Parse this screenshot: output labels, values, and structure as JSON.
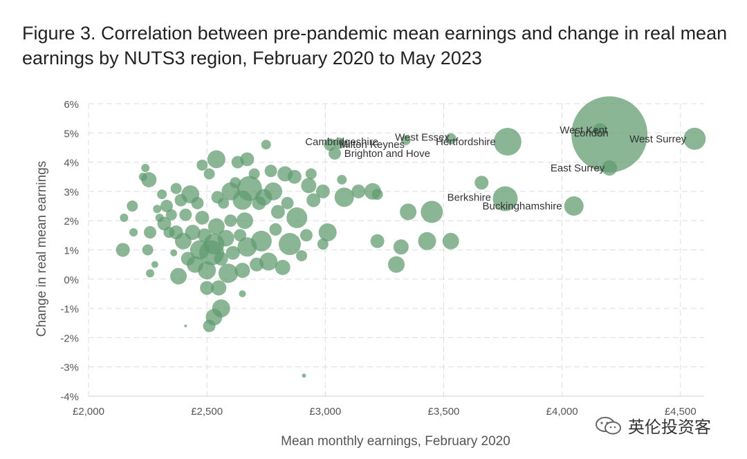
{
  "title": "Figure 3. Correlation between pre-pandemic mean earnings and change in real mean earnings by NUTS3 region, February 2020 to May 2023",
  "watermark": "英伦投资客",
  "colors": {
    "bubble": "#5e9a6e",
    "grid": "#dcdcdc",
    "axis_text": "#555555"
  },
  "chart_data": {
    "type": "scatter",
    "xlabel": "Mean monthly earnings, February 2020",
    "ylabel": "Change in real mean earnings",
    "xlim": [
      2000,
      4600
    ],
    "ylim": [
      -4,
      6
    ],
    "x_ticks": [
      2000,
      2500,
      3000,
      3500,
      4000,
      4500
    ],
    "x_tick_labels": [
      "£2,000",
      "£2,500",
      "£3,000",
      "£3,500",
      "£4,000",
      "£4,500"
    ],
    "y_ticks": [
      -4,
      -3,
      -2,
      -1,
      0,
      1,
      2,
      3,
      4,
      5,
      6
    ],
    "y_tick_labels": [
      "-4%",
      "-3%",
      "-2%",
      "-1%",
      "0%",
      "1%",
      "2%",
      "3%",
      "4%",
      "5%",
      "6%"
    ],
    "grid": true,
    "points": [
      {
        "x": 4200,
        "y": 4.95,
        "r": 55,
        "label": "London"
      },
      {
        "x": 4560,
        "y": 4.8,
        "r": 16,
        "label": "West Surrey"
      },
      {
        "x": 4160,
        "y": 5.1,
        "r": 10,
        "label": "West Kent"
      },
      {
        "x": 4200,
        "y": 3.8,
        "r": 11,
        "label": "East Surrey"
      },
      {
        "x": 3770,
        "y": 4.7,
        "r": 20,
        "label": "Hertfordshire"
      },
      {
        "x": 3760,
        "y": 2.75,
        "r": 18,
        "label": "Berkshire"
      },
      {
        "x": 4050,
        "y": 2.5,
        "r": 14,
        "label": "Buckinghamshire"
      },
      {
        "x": 3340,
        "y": 4.75,
        "r": 7,
        "label": "West Essex"
      },
      {
        "x": 3530,
        "y": 4.8,
        "r": 8,
        "label": ""
      },
      {
        "x": 3020,
        "y": 4.6,
        "r": 9,
        "label": "Cambridgeshire"
      },
      {
        "x": 3060,
        "y": 4.65,
        "r": 8,
        "label": "Milton Keynes"
      },
      {
        "x": 3040,
        "y": 4.3,
        "r": 9,
        "label": "Brighton and Hove"
      },
      {
        "x": 3660,
        "y": 3.3,
        "r": 10,
        "label": ""
      },
      {
        "x": 3450,
        "y": 2.3,
        "r": 16,
        "label": ""
      },
      {
        "x": 3350,
        "y": 2.3,
        "r": 12,
        "label": ""
      },
      {
        "x": 3200,
        "y": 3.0,
        "r": 12,
        "label": ""
      },
      {
        "x": 3140,
        "y": 3.0,
        "r": 10,
        "label": ""
      },
      {
        "x": 3220,
        "y": 2.9,
        "r": 8,
        "label": ""
      },
      {
        "x": 3430,
        "y": 1.3,
        "r": 13,
        "label": ""
      },
      {
        "x": 3530,
        "y": 1.3,
        "r": 12,
        "label": ""
      },
      {
        "x": 3320,
        "y": 1.1,
        "r": 11,
        "label": ""
      },
      {
        "x": 3220,
        "y": 1.3,
        "r": 10,
        "label": ""
      },
      {
        "x": 3300,
        "y": 0.5,
        "r": 12,
        "label": ""
      },
      {
        "x": 3080,
        "y": 2.8,
        "r": 14,
        "label": ""
      },
      {
        "x": 3070,
        "y": 3.4,
        "r": 7,
        "label": ""
      },
      {
        "x": 3010,
        "y": 1.6,
        "r": 13,
        "label": ""
      },
      {
        "x": 2990,
        "y": 1.2,
        "r": 8,
        "label": ""
      },
      {
        "x": 2990,
        "y": 3.0,
        "r": 10,
        "label": ""
      },
      {
        "x": 2940,
        "y": 3.6,
        "r": 8,
        "label": ""
      },
      {
        "x": 2950,
        "y": 2.7,
        "r": 10,
        "label": ""
      },
      {
        "x": 2930,
        "y": 3.2,
        "r": 11,
        "label": ""
      },
      {
        "x": 2920,
        "y": 1.5,
        "r": 9,
        "label": ""
      },
      {
        "x": 2900,
        "y": 0.8,
        "r": 8,
        "label": ""
      },
      {
        "x": 2880,
        "y": 2.1,
        "r": 15,
        "label": ""
      },
      {
        "x": 2870,
        "y": 3.5,
        "r": 10,
        "label": ""
      },
      {
        "x": 2850,
        "y": 1.2,
        "r": 16,
        "label": ""
      },
      {
        "x": 2830,
        "y": 3.6,
        "r": 11,
        "label": ""
      },
      {
        "x": 2840,
        "y": 2.6,
        "r": 9,
        "label": ""
      },
      {
        "x": 2820,
        "y": 0.4,
        "r": 11,
        "label": ""
      },
      {
        "x": 2800,
        "y": 2.3,
        "r": 10,
        "label": ""
      },
      {
        "x": 2790,
        "y": 1.7,
        "r": 9,
        "label": ""
      },
      {
        "x": 2780,
        "y": 3.0,
        "r": 13,
        "label": ""
      },
      {
        "x": 2770,
        "y": 3.7,
        "r": 9,
        "label": ""
      },
      {
        "x": 2760,
        "y": 0.6,
        "r": 13,
        "label": ""
      },
      {
        "x": 2750,
        "y": 4.6,
        "r": 7,
        "label": ""
      },
      {
        "x": 2740,
        "y": 2.8,
        "r": 12,
        "label": ""
      },
      {
        "x": 2730,
        "y": 1.3,
        "r": 15,
        "label": ""
      },
      {
        "x": 2720,
        "y": 2.6,
        "r": 10,
        "label": ""
      },
      {
        "x": 2710,
        "y": 0.5,
        "r": 10,
        "label": ""
      },
      {
        "x": 2700,
        "y": 3.6,
        "r": 8,
        "label": ""
      },
      {
        "x": 2680,
        "y": 3.1,
        "r": 18,
        "label": ""
      },
      {
        "x": 2670,
        "y": 4.1,
        "r": 10,
        "label": ""
      },
      {
        "x": 2670,
        "y": 1.1,
        "r": 14,
        "label": ""
      },
      {
        "x": 2660,
        "y": 2.0,
        "r": 12,
        "label": ""
      },
      {
        "x": 2650,
        "y": 0.3,
        "r": 11,
        "label": ""
      },
      {
        "x": 2650,
        "y": 2.7,
        "r": 14,
        "label": ""
      },
      {
        "x": 2640,
        "y": 1.5,
        "r": 9,
        "label": ""
      },
      {
        "x": 2630,
        "y": 4.0,
        "r": 9,
        "label": ""
      },
      {
        "x": 2620,
        "y": 3.3,
        "r": 8,
        "label": ""
      },
      {
        "x": 2610,
        "y": 0.9,
        "r": 10,
        "label": ""
      },
      {
        "x": 2600,
        "y": 3.0,
        "r": 13,
        "label": ""
      },
      {
        "x": 2600,
        "y": 2.0,
        "r": 9,
        "label": ""
      },
      {
        "x": 2590,
        "y": 0.2,
        "r": 14,
        "label": ""
      },
      {
        "x": 2580,
        "y": 1.4,
        "r": 12,
        "label": ""
      },
      {
        "x": 2570,
        "y": 2.6,
        "r": 8,
        "label": ""
      },
      {
        "x": 2560,
        "y": -1.0,
        "r": 13,
        "label": ""
      },
      {
        "x": 2560,
        "y": 0.7,
        "r": 10,
        "label": ""
      },
      {
        "x": 2550,
        "y": -0.3,
        "r": 11,
        "label": ""
      },
      {
        "x": 2545,
        "y": 2.8,
        "r": 9,
        "label": ""
      },
      {
        "x": 2540,
        "y": 4.1,
        "r": 13,
        "label": ""
      },
      {
        "x": 2540,
        "y": 1.8,
        "r": 12,
        "label": ""
      },
      {
        "x": 2530,
        "y": 1.2,
        "r": 15,
        "label": ""
      },
      {
        "x": 2530,
        "y": -1.3,
        "r": 12,
        "label": ""
      },
      {
        "x": 2520,
        "y": 0.9,
        "r": 18,
        "label": ""
      },
      {
        "x": 2510,
        "y": 3.6,
        "r": 8,
        "label": ""
      },
      {
        "x": 2510,
        "y": -1.6,
        "r": 9,
        "label": ""
      },
      {
        "x": 2500,
        "y": 0.3,
        "r": 13,
        "label": ""
      },
      {
        "x": 2500,
        "y": -0.3,
        "r": 10,
        "label": ""
      },
      {
        "x": 2490,
        "y": 1.5,
        "r": 10,
        "label": ""
      },
      {
        "x": 2480,
        "y": 2.1,
        "r": 10,
        "label": ""
      },
      {
        "x": 2480,
        "y": 3.9,
        "r": 8,
        "label": ""
      },
      {
        "x": 2470,
        "y": 1.0,
        "r": 14,
        "label": ""
      },
      {
        "x": 2460,
        "y": 2.6,
        "r": 9,
        "label": ""
      },
      {
        "x": 2450,
        "y": 0.5,
        "r": 12,
        "label": ""
      },
      {
        "x": 2440,
        "y": 1.6,
        "r": 11,
        "label": ""
      },
      {
        "x": 2430,
        "y": 2.9,
        "r": 13,
        "label": ""
      },
      {
        "x": 2420,
        "y": 0.7,
        "r": 10,
        "label": ""
      },
      {
        "x": 2410,
        "y": 2.2,
        "r": 9,
        "label": ""
      },
      {
        "x": 2400,
        "y": 1.3,
        "r": 12,
        "label": ""
      },
      {
        "x": 2390,
        "y": 2.7,
        "r": 9,
        "label": ""
      },
      {
        "x": 2380,
        "y": 0.1,
        "r": 12,
        "label": ""
      },
      {
        "x": 2370,
        "y": 1.6,
        "r": 10,
        "label": ""
      },
      {
        "x": 2370,
        "y": 3.1,
        "r": 8,
        "label": ""
      },
      {
        "x": 2360,
        "y": 0.9,
        "r": 5,
        "label": ""
      },
      {
        "x": 2350,
        "y": 2.2,
        "r": 8,
        "label": ""
      },
      {
        "x": 2340,
        "y": 1.6,
        "r": 8,
        "label": ""
      },
      {
        "x": 2330,
        "y": 2.5,
        "r": 9,
        "label": ""
      },
      {
        "x": 2320,
        "y": 1.9,
        "r": 10,
        "label": ""
      },
      {
        "x": 2310,
        "y": 2.9,
        "r": 7,
        "label": ""
      },
      {
        "x": 2300,
        "y": 2.1,
        "r": 6,
        "label": ""
      },
      {
        "x": 2290,
        "y": 2.4,
        "r": 6,
        "label": ""
      },
      {
        "x": 2280,
        "y": 0.5,
        "r": 5,
        "label": ""
      },
      {
        "x": 2260,
        "y": 1.6,
        "r": 9,
        "label": ""
      },
      {
        "x": 2260,
        "y": 0.2,
        "r": 6,
        "label": ""
      },
      {
        "x": 2255,
        "y": 3.4,
        "r": 11,
        "label": ""
      },
      {
        "x": 2250,
        "y": 1.0,
        "r": 8,
        "label": ""
      },
      {
        "x": 2240,
        "y": 3.8,
        "r": 6,
        "label": ""
      },
      {
        "x": 2230,
        "y": 3.5,
        "r": 6,
        "label": ""
      },
      {
        "x": 2190,
        "y": 1.6,
        "r": 6,
        "label": ""
      },
      {
        "x": 2185,
        "y": 2.5,
        "r": 8,
        "label": ""
      },
      {
        "x": 2150,
        "y": 2.1,
        "r": 6,
        "label": ""
      },
      {
        "x": 2145,
        "y": 1.0,
        "r": 10,
        "label": ""
      },
      {
        "x": 2650,
        "y": -0.5,
        "r": 5,
        "label": ""
      },
      {
        "x": 2410,
        "y": -1.6,
        "r": 2,
        "label": ""
      },
      {
        "x": 2910,
        "y": -3.3,
        "r": 3,
        "label": ""
      }
    ],
    "labels": [
      {
        "text": "London",
        "x": 4050,
        "y": 5.0,
        "anchor": "start"
      },
      {
        "text": "West Kent",
        "x": 3990,
        "y": 5.1,
        "anchor": "start"
      },
      {
        "text": "West Surrey",
        "x": 4525,
        "y": 4.8,
        "anchor": "end"
      },
      {
        "text": "East Surrey",
        "x": 4180,
        "y": 3.8,
        "anchor": "end"
      },
      {
        "text": "Hertfordshire",
        "x": 3720,
        "y": 4.7,
        "anchor": "end"
      },
      {
        "text": "West Essex",
        "x": 3525,
        "y": 4.85,
        "anchor": "end"
      },
      {
        "text": "Cambridgeshire",
        "x": 2915,
        "y": 4.7,
        "anchor": "start"
      },
      {
        "text": "Milton Keynes",
        "x": 3060,
        "y": 4.6,
        "anchor": "start"
      },
      {
        "text": "Brighton and Hove",
        "x": 3080,
        "y": 4.3,
        "anchor": "start"
      },
      {
        "text": "Berkshire",
        "x": 3700,
        "y": 2.8,
        "anchor": "end"
      },
      {
        "text": "Buckinghamshire",
        "x": 4000,
        "y": 2.5,
        "anchor": "end"
      }
    ]
  }
}
